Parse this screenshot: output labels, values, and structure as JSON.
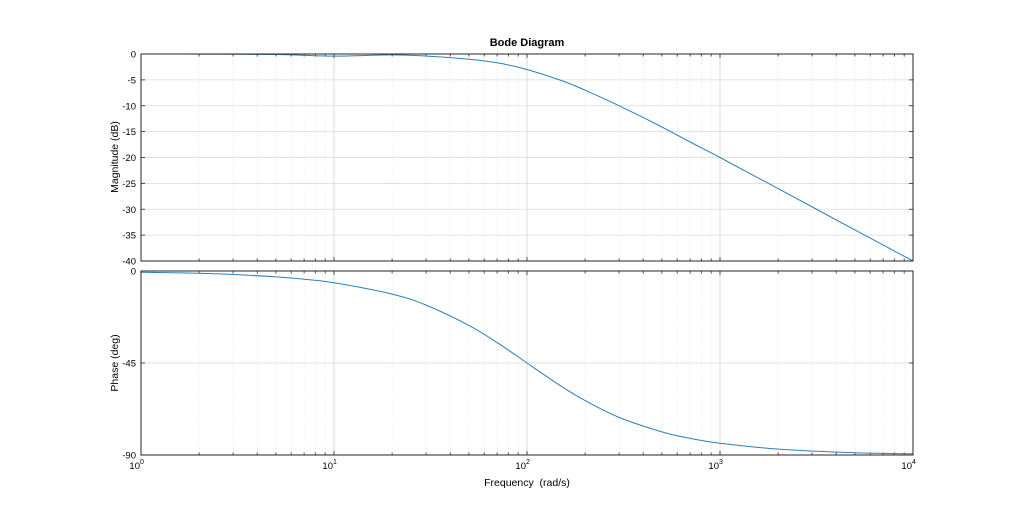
{
  "title": "Bode Diagram",
  "colors": {
    "curve": "#2f7fb8",
    "axis": "#262626",
    "grid": "#d9d9d9",
    "text": "#000000"
  },
  "chart_data": {
    "type": "line",
    "title": "Bode Diagram",
    "xlabel": "Frequency  (rad/s)",
    "xscale": "log",
    "xlim": [
      1,
      10000
    ],
    "x_ticks": [
      {
        "base": "10",
        "exp": "0"
      },
      {
        "base": "10",
        "exp": "1"
      },
      {
        "base": "10",
        "exp": "2"
      },
      {
        "base": "10",
        "exp": "3"
      },
      {
        "base": "10",
        "exp": "4"
      }
    ],
    "grid": true,
    "panels": [
      {
        "name": "magnitude",
        "ylabel": "Magnitude (dB)",
        "ylim": [
          -40,
          0
        ],
        "yticks": [
          "0",
          "-5",
          "-10",
          "-15",
          "-20",
          "-25",
          "-30",
          "-35",
          "-40"
        ],
        "x": [
          1,
          2,
          5,
          10,
          20,
          30,
          50,
          70,
          100,
          150,
          200,
          300,
          500,
          700,
          1000,
          2000,
          5000,
          10000
        ],
        "y": [
          0,
          -0.02,
          -0.1,
          -0.4,
          -0.17,
          -0.4,
          -1.0,
          -1.7,
          -3.0,
          -5.1,
          -7.0,
          -10.0,
          -14.1,
          -17.0,
          -20.0,
          -26.0,
          -34.0,
          -40.0
        ]
      },
      {
        "name": "phase",
        "ylabel": "Phase (deg)",
        "ylim": [
          -90,
          0
        ],
        "yticks": [
          "0",
          "-45",
          "-90"
        ],
        "x": [
          1,
          2,
          3,
          5,
          7,
          10,
          20,
          30,
          50,
          70,
          100,
          150,
          200,
          300,
          500,
          700,
          1000,
          2000,
          5000,
          10000
        ],
        "y": [
          -0.6,
          -1.1,
          -1.7,
          -2.9,
          -4.0,
          -5.7,
          -11.3,
          -16.7,
          -26.6,
          -35.0,
          -45.0,
          -56.3,
          -63.4,
          -71.6,
          -78.7,
          -81.9,
          -84.3,
          -87.1,
          -88.9,
          -89.4
        ]
      }
    ]
  }
}
